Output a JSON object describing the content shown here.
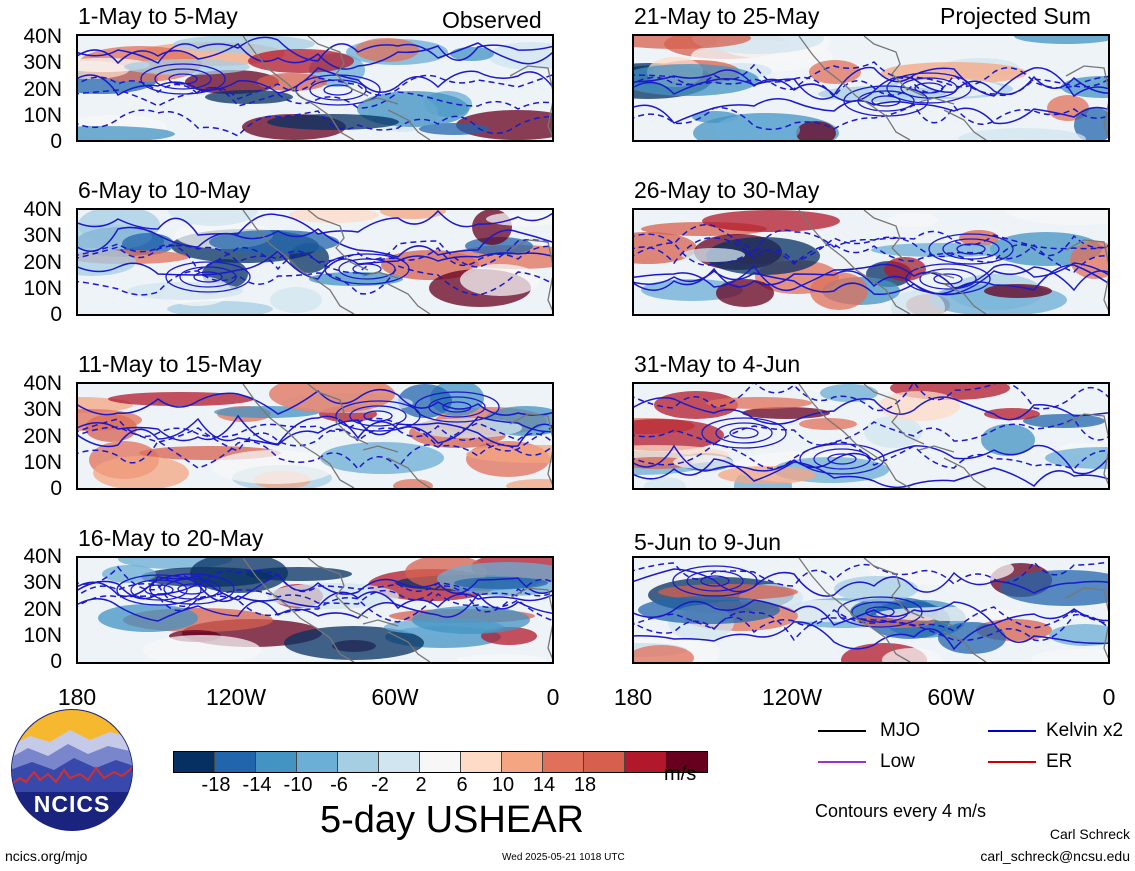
{
  "figure": {
    "title": "5-day USHEAR",
    "units": "m/s",
    "contour_note": "Contours every 4 m/s",
    "left_column_label": "Observed",
    "right_column_label": "Projected Sum",
    "author": "Carl Schreck",
    "email": "carl_schreck@ncsu.edu",
    "website": "ncics.org/mjo",
    "timestamp": "Wed 2025-05-21 1018 UTC",
    "logo_text": "NCICS"
  },
  "axes": {
    "y_ticks": [
      "40N",
      "30N",
      "20N",
      "10N",
      "0"
    ],
    "x_ticks": [
      "180",
      "120W",
      "60W",
      "0"
    ]
  },
  "panels_left": [
    {
      "title": "1-May to 5-May"
    },
    {
      "title": "6-May to 10-May"
    },
    {
      "title": "11-May to 15-May"
    },
    {
      "title": "16-May to 20-May"
    }
  ],
  "panels_right": [
    {
      "title": "21-May to 25-May"
    },
    {
      "title": "26-May to 30-May"
    },
    {
      "title": "31-May to 4-Jun"
    },
    {
      "title": "5-Jun to 9-Jun"
    }
  ],
  "colorbar": {
    "colors": [
      "#053061",
      "#2166ac",
      "#4393c3",
      "#6baed6",
      "#a6cee3",
      "#d1e5f0",
      "#f7f7f7",
      "#fddbc7",
      "#f4a582",
      "#e0705a",
      "#d6604d",
      "#b2182b",
      "#67001f"
    ],
    "tick_labels": [
      "-18",
      "-14",
      "-10",
      "-6",
      "-2",
      "2",
      "6",
      "10",
      "14",
      "18"
    ]
  },
  "legend": [
    {
      "label": "MJO",
      "color": "#000000"
    },
    {
      "label": "Kelvin x2",
      "color": "#0000cc"
    },
    {
      "label": "Low",
      "color": "#9933cc"
    },
    {
      "label": "ER",
      "color": "#cc0000"
    }
  ]
}
